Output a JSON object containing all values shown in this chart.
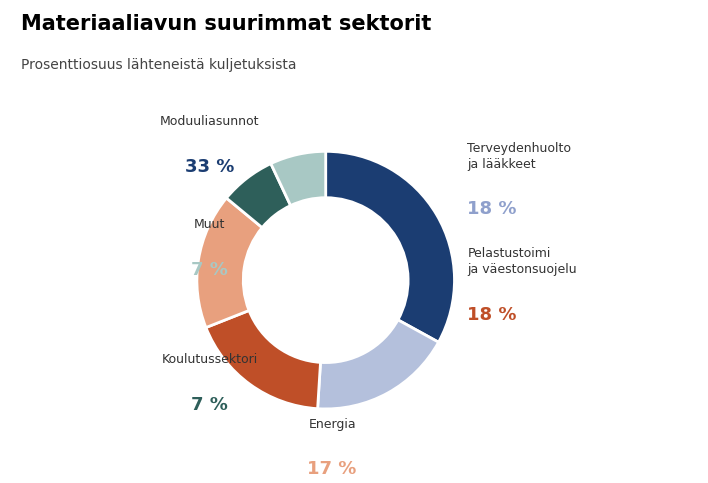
{
  "title": "Materiaaliavun suurimmat sektorit",
  "subtitle": "Prosenttiosuus lähteneistä kuljetuksista",
  "sectors": [
    {
      "label": "Moduuliasunnot",
      "pct": 33,
      "color": "#1b3d72",
      "label_color": "#333333",
      "pct_color": "#1b3d72"
    },
    {
      "label": "Terveydenhuolto\nja lääkkeet",
      "pct": 18,
      "color": "#b4c0dc",
      "label_color": "#333333",
      "pct_color": "#8fa0cc"
    },
    {
      "label": "Pelastustoimi\nja väestonsuojelu",
      "pct": 18,
      "color": "#bf4f28",
      "label_color": "#333333",
      "pct_color": "#bf4f28"
    },
    {
      "label": "Energia",
      "pct": 17,
      "color": "#e8a07e",
      "label_color": "#333333",
      "pct_color": "#e8a07e"
    },
    {
      "label": "Koulutussektori",
      "pct": 7,
      "color": "#2e5f5a",
      "label_color": "#333333",
      "pct_color": "#2e5f5a"
    },
    {
      "label": "Muut",
      "pct": 7,
      "color": "#a8c8c4",
      "label_color": "#333333",
      "pct_color": "#a8c8c4"
    }
  ],
  "start_angle": 90,
  "donut_width": 0.36,
  "background_color": "#ffffff",
  "title_fontsize": 15,
  "subtitle_fontsize": 10,
  "label_fontsize": 9,
  "pct_fontsize": 13
}
